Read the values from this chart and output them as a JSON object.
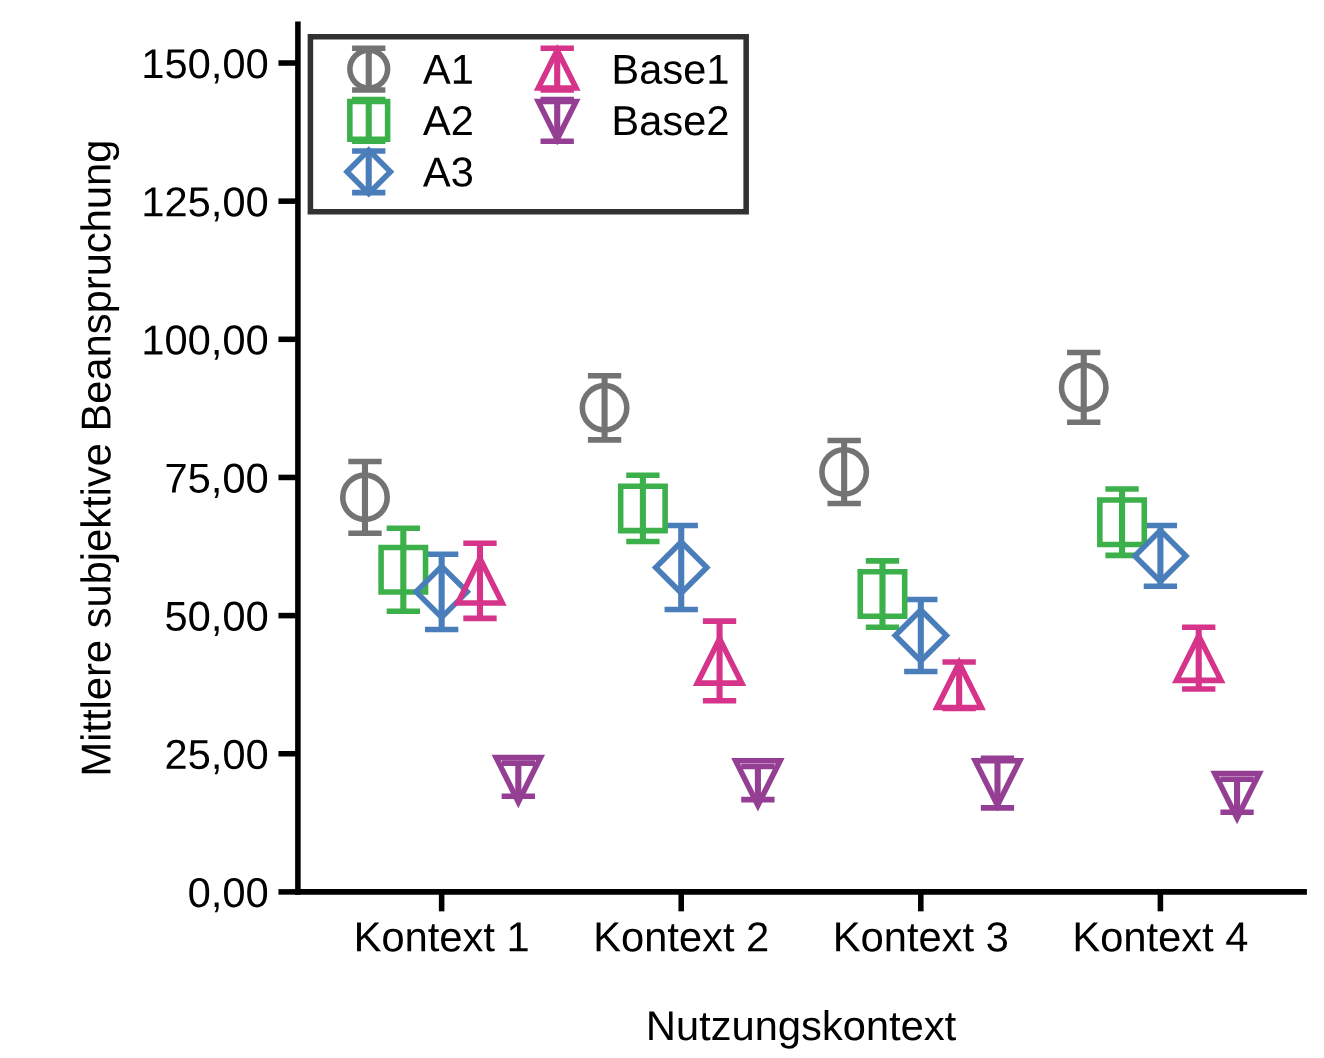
{
  "chart_data": {
    "type": "scatter",
    "xlabel": "Nutzungskontext",
    "ylabel": "Mittlere subjektive Beanspruchung",
    "categories": [
      "Kontext 1",
      "Kontext 2",
      "Kontext 3",
      "Kontext 4"
    ],
    "ylim": [
      0,
      157
    ],
    "yticks": [
      {
        "value": 0,
        "label": "0,00"
      },
      {
        "value": 25,
        "label": "25,00"
      },
      {
        "value": 50,
        "label": "50,00"
      },
      {
        "value": 75,
        "label": "75,00"
      },
      {
        "value": 100,
        "label": "100,00"
      },
      {
        "value": 125,
        "label": "125,00"
      },
      {
        "value": 150,
        "label": "150,00"
      }
    ],
    "grid": false,
    "legend": "top left",
    "series": [
      {
        "name": "A1",
        "color": "#737373",
        "marker": "circle",
        "values": [
          71.4,
          87.6,
          76.0,
          91.3
        ],
        "errors": [
          6.5,
          5.8,
          5.7,
          6.3
        ]
      },
      {
        "name": "A2",
        "color": "#3cb04a",
        "marker": "square",
        "values": [
          58.3,
          69.4,
          53.9,
          66.9
        ],
        "errors": [
          7.5,
          6.0,
          6.0,
          6.0
        ]
      },
      {
        "name": "A3",
        "color": "#4a7ebb",
        "marker": "diamond",
        "values": [
          54.3,
          58.7,
          46.4,
          60.8
        ],
        "errors": [
          6.8,
          7.6,
          6.5,
          5.5
        ]
      },
      {
        "name": "Base1",
        "color": "#d6338a",
        "marker": "triangle",
        "values": [
          56.3,
          41.8,
          37.4,
          42.3
        ],
        "errors": [
          6.8,
          7.2,
          4.2,
          5.6
        ]
      },
      {
        "name": "Base2",
        "color": "#953f94",
        "marker": "triangle_down",
        "values": [
          20.3,
          19.7,
          19.7,
          17.4
        ],
        "errors": [
          3.0,
          3.0,
          4.5,
          3.0
        ]
      }
    ]
  }
}
